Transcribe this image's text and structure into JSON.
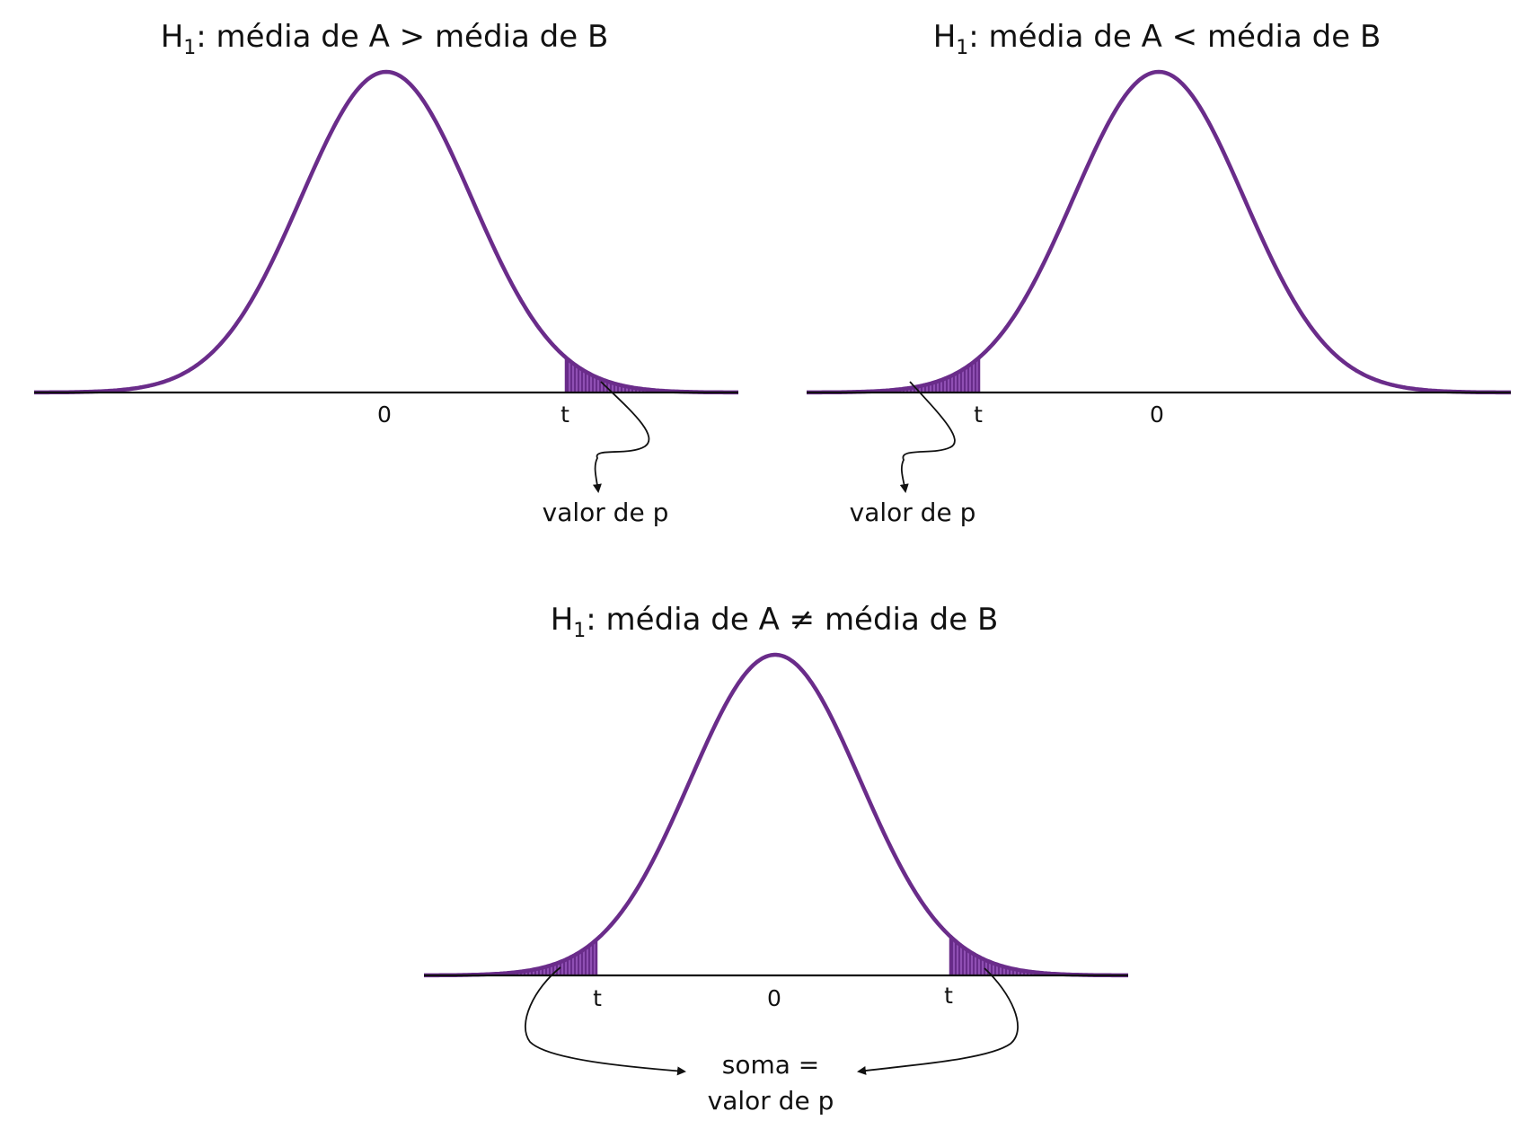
{
  "colors": {
    "curve": "#6a2c8a",
    "shade": "#8f4fb3",
    "hatch": "#5e2380"
  },
  "panels": [
    {
      "title_main": "H",
      "title_sub": "1",
      "title_rest": ": média de A > média de B",
      "tick_zero": "0",
      "tick_t": "t",
      "note_lines": [
        "valor de p"
      ]
    },
    {
      "title_main": "H",
      "title_sub": "1",
      "title_rest": ": média de A < média de B",
      "tick_zero": "0",
      "tick_t": "t",
      "note_lines": [
        "valor de p"
      ]
    },
    {
      "title_main": "H",
      "title_sub": "1",
      "title_rest": ": média de A ≠ média de B",
      "tick_zero": "0",
      "tick_t_left": "t",
      "tick_t_right": "t",
      "note_lines": [
        "soma =",
        "valor de p"
      ]
    }
  ]
}
